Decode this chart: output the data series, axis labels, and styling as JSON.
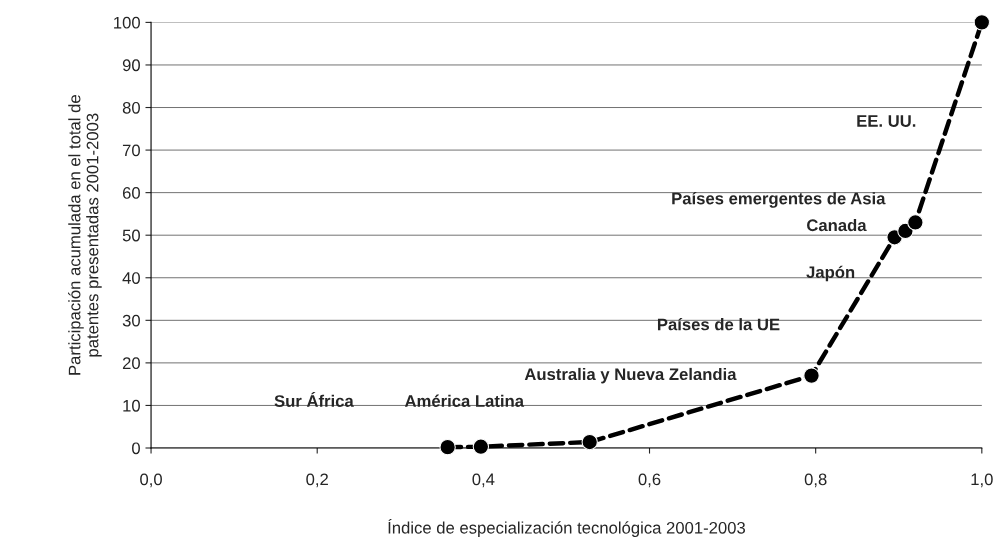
{
  "chart_data": {
    "type": "line",
    "xlabel": "Índice de especialización tecnológica 2001-2003",
    "ylabel": "Participación acumulada en el total de\npatentes presentadas 2001-2003",
    "x": [
      0.357,
      0.397,
      0.528,
      0.795,
      0.895,
      0.908,
      0.92,
      1.0
    ],
    "series": [
      {
        "color": "#000000",
        "values": [
          0.2,
          0.3,
          1.4,
          17,
          49.5,
          51,
          53,
          100
        ]
      }
    ],
    "marker": "circle",
    "line_style": "dashed",
    "grid": "y",
    "xlim": [
      0,
      1
    ],
    "ylim": [
      0,
      100
    ],
    "xticks": [
      {
        "value": 0,
        "label": "0,0"
      },
      {
        "value": 0.2,
        "label": "0,2"
      },
      {
        "value": 0.4,
        "label": "0,4"
      },
      {
        "value": 0.6,
        "label": "0,6"
      },
      {
        "value": 0.8,
        "label": "0,8"
      },
      {
        "value": 1,
        "label": "1,0"
      }
    ],
    "yticks": [
      0,
      10,
      20,
      30,
      40,
      50,
      60,
      70,
      80,
      90,
      100
    ],
    "annotations": [
      "Sur África",
      "América Latina",
      "Australia y Nueva Zelandia",
      "Países de la UE",
      "Japón",
      "Canada",
      "Países emergentes de Asia",
      "EE. UU."
    ]
  }
}
